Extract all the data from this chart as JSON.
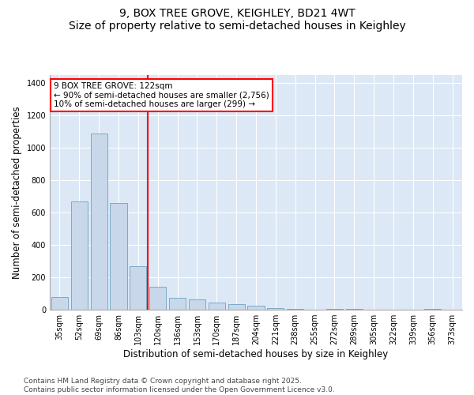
{
  "title1": "9, BOX TREE GROVE, KEIGHLEY, BD21 4WT",
  "title2": "Size of property relative to semi-detached houses in Keighley",
  "xlabel": "Distribution of semi-detached houses by size in Keighley",
  "ylabel": "Number of semi-detached properties",
  "categories": [
    "35sqm",
    "52sqm",
    "69sqm",
    "86sqm",
    "103sqm",
    "120sqm",
    "136sqm",
    "153sqm",
    "170sqm",
    "187sqm",
    "204sqm",
    "221sqm",
    "238sqm",
    "255sqm",
    "272sqm",
    "289sqm",
    "305sqm",
    "322sqm",
    "339sqm",
    "356sqm",
    "373sqm"
  ],
  "values": [
    80,
    670,
    1090,
    660,
    270,
    140,
    75,
    65,
    45,
    35,
    25,
    10,
    4,
    0,
    7,
    4,
    0,
    0,
    0,
    3,
    0
  ],
  "bar_color": "#c8d8ea",
  "bar_edge_color": "#7aaac8",
  "vline_color": "red",
  "vline_pos": 4.5,
  "property_label": "9 BOX TREE GROVE: 122sqm",
  "annotation_line1": "← 90% of semi-detached houses are smaller (2,756)",
  "annotation_line2": "10% of semi-detached houses are larger (299) →",
  "ylim": [
    0,
    1450
  ],
  "yticks": [
    0,
    200,
    400,
    600,
    800,
    1000,
    1200,
    1400
  ],
  "footer1": "Contains HM Land Registry data © Crown copyright and database right 2025.",
  "footer2": "Contains public sector information licensed under the Open Government Licence v3.0.",
  "bg_color": "#dce8f5",
  "grid_color": "#ffffff",
  "title_fontsize": 10,
  "subtitle_fontsize": 9,
  "axis_label_fontsize": 8.5,
  "tick_fontsize": 7,
  "annotation_fontsize": 7.5,
  "footer_fontsize": 6.5
}
